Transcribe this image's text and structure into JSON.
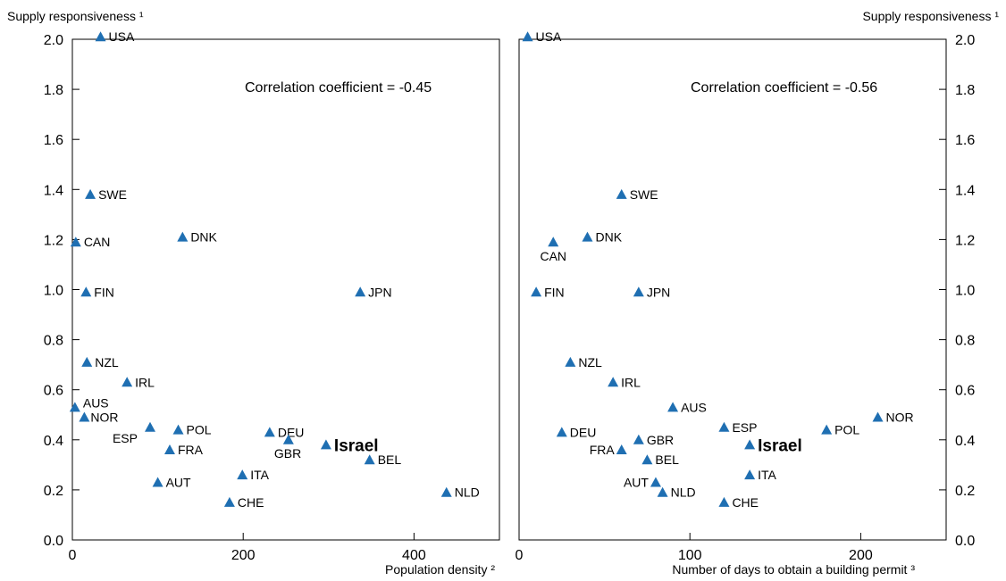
{
  "chart_data": [
    {
      "type": "scatter",
      "ylabel": "Supply responsiveness ¹",
      "xlabel": "Population density ²",
      "annotation": "Correlation coefficient = -0.45",
      "xlim": [
        0,
        500
      ],
      "ylim": [
        0,
        2.0
      ],
      "x_ticks": [
        0,
        200,
        400
      ],
      "y_ticks": [
        "0.0",
        "0.2",
        "0.4",
        "0.6",
        "0.8",
        "1.0",
        "1.2",
        "1.4",
        "1.6",
        "1.8",
        "2.0"
      ],
      "marker_color": "#1f6fb2",
      "points": [
        {
          "label": "USA",
          "x": 33,
          "y": 2.01
        },
        {
          "label": "SWE",
          "x": 21,
          "y": 1.38
        },
        {
          "label": "CAN",
          "x": 4,
          "y": 1.19
        },
        {
          "label": "DNK",
          "x": 129,
          "y": 1.21
        },
        {
          "label": "FIN",
          "x": 16,
          "y": 0.99
        },
        {
          "label": "JPN",
          "x": 337,
          "y": 0.99
        },
        {
          "label": "NZL",
          "x": 17,
          "y": 0.71
        },
        {
          "label": "IRL",
          "x": 64,
          "y": 0.63
        },
        {
          "label": "AUS",
          "x": 3,
          "y": 0.53
        },
        {
          "label": "NOR",
          "x": 14,
          "y": 0.49
        },
        {
          "label": "ESP",
          "x": 91,
          "y": 0.45
        },
        {
          "label": "POL",
          "x": 124,
          "y": 0.44
        },
        {
          "label": "FRA",
          "x": 114,
          "y": 0.36
        },
        {
          "label": "DEU",
          "x": 231,
          "y": 0.43
        },
        {
          "label": "GBR",
          "x": 253,
          "y": 0.4
        },
        {
          "label": "Israel",
          "x": 297,
          "y": 0.38,
          "highlight": true
        },
        {
          "label": "BEL",
          "x": 348,
          "y": 0.32
        },
        {
          "label": "AUT",
          "x": 100,
          "y": 0.23
        },
        {
          "label": "ITA",
          "x": 199,
          "y": 0.26
        },
        {
          "label": "CHE",
          "x": 184,
          "y": 0.15
        },
        {
          "label": "NLD",
          "x": 438,
          "y": 0.19
        }
      ]
    },
    {
      "type": "scatter",
      "ylabel": "Supply responsiveness ¹",
      "xlabel": "Number of days to obtain a building permit ³",
      "annotation": "Correlation coefficient = -0.56",
      "xlim": [
        0,
        250
      ],
      "ylim": [
        0,
        2.0
      ],
      "x_ticks": [
        0,
        100,
        200
      ],
      "y_ticks": [
        "0.0",
        "0.2",
        "0.4",
        "0.6",
        "0.8",
        "1.0",
        "1.2",
        "1.4",
        "1.6",
        "1.8",
        "2.0"
      ],
      "marker_color": "#1f6fb2",
      "points": [
        {
          "label": "USA",
          "x": 5,
          "y": 2.01
        },
        {
          "label": "SWE",
          "x": 60,
          "y": 1.38
        },
        {
          "label": "CAN",
          "x": 20,
          "y": 1.19
        },
        {
          "label": "DNK",
          "x": 40,
          "y": 1.21
        },
        {
          "label": "FIN",
          "x": 10,
          "y": 0.99
        },
        {
          "label": "JPN",
          "x": 70,
          "y": 0.99
        },
        {
          "label": "NZL",
          "x": 30,
          "y": 0.71
        },
        {
          "label": "IRL",
          "x": 55,
          "y": 0.63
        },
        {
          "label": "AUS",
          "x": 90,
          "y": 0.53
        },
        {
          "label": "NOR",
          "x": 210,
          "y": 0.49
        },
        {
          "label": "ESP",
          "x": 120,
          "y": 0.45
        },
        {
          "label": "POL",
          "x": 180,
          "y": 0.44
        },
        {
          "label": "DEU",
          "x": 25,
          "y": 0.43
        },
        {
          "label": "GBR",
          "x": 70,
          "y": 0.4
        },
        {
          "label": "Israel",
          "x": 135,
          "y": 0.38,
          "highlight": true
        },
        {
          "label": "FRA",
          "x": 60,
          "y": 0.36
        },
        {
          "label": "BEL",
          "x": 75,
          "y": 0.32
        },
        {
          "label": "ITA",
          "x": 135,
          "y": 0.26
        },
        {
          "label": "AUT",
          "x": 80,
          "y": 0.23
        },
        {
          "label": "NLD",
          "x": 84,
          "y": 0.19
        },
        {
          "label": "CHE",
          "x": 120,
          "y": 0.15
        }
      ]
    }
  ]
}
